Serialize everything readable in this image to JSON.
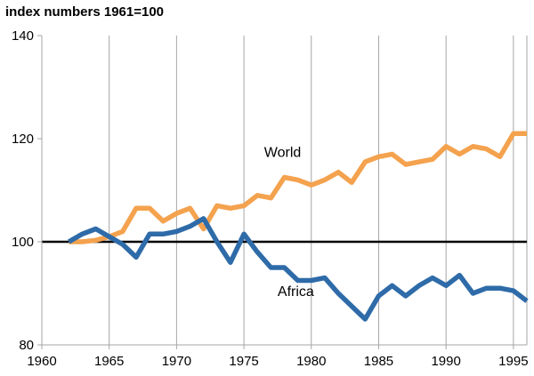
{
  "chart_data": {
    "type": "line",
    "title": "index numbers  1961=100",
    "xlabel": "",
    "ylabel": "",
    "xlim": [
      1960,
      1996
    ],
    "ylim": [
      80,
      140
    ],
    "x_ticks": [
      "1960",
      "1965",
      "1970",
      "1975",
      "1980",
      "1985",
      "1990",
      "1995"
    ],
    "y_ticks": [
      "80",
      "100",
      "120",
      "140"
    ],
    "grid": "vertical",
    "reference_line": 100,
    "x": [
      1962,
      1963,
      1964,
      1965,
      1966,
      1967,
      1968,
      1969,
      1970,
      1971,
      1972,
      1973,
      1974,
      1975,
      1976,
      1977,
      1978,
      1979,
      1980,
      1981,
      1982,
      1983,
      1984,
      1985,
      1986,
      1987,
      1988,
      1989,
      1990,
      1991,
      1992,
      1993,
      1994,
      1995,
      1996
    ],
    "series": [
      {
        "name": "World",
        "color": "#F4A24E",
        "values": [
          100,
          100,
          100.3,
          101,
          102,
          106.5,
          106.5,
          104,
          105.5,
          106.5,
          102.5,
          107,
          106.5,
          107,
          109,
          108.5,
          112.5,
          112,
          111,
          112,
          113.5,
          111.5,
          115.5,
          116.5,
          117,
          115,
          115.5,
          116,
          118.5,
          117,
          118.5,
          118,
          116.5,
          121,
          121
        ]
      },
      {
        "name": "Africa",
        "color": "#2E6BA8",
        "values": [
          100,
          101.5,
          102.5,
          101,
          99.5,
          97,
          101.5,
          101.5,
          102,
          103,
          104.5,
          100,
          96,
          101.5,
          98,
          95,
          95,
          92.5,
          92.5,
          93,
          90,
          87.5,
          85,
          89.5,
          91.5,
          89.5,
          91.5,
          93,
          91.5,
          93.5,
          90,
          91,
          91,
          90.5,
          88.5
        ]
      }
    ],
    "colors": {
      "world": "#F4A24E",
      "africa": "#2E6BA8",
      "grid": "#A6A6A6",
      "reference": "#000000"
    }
  }
}
